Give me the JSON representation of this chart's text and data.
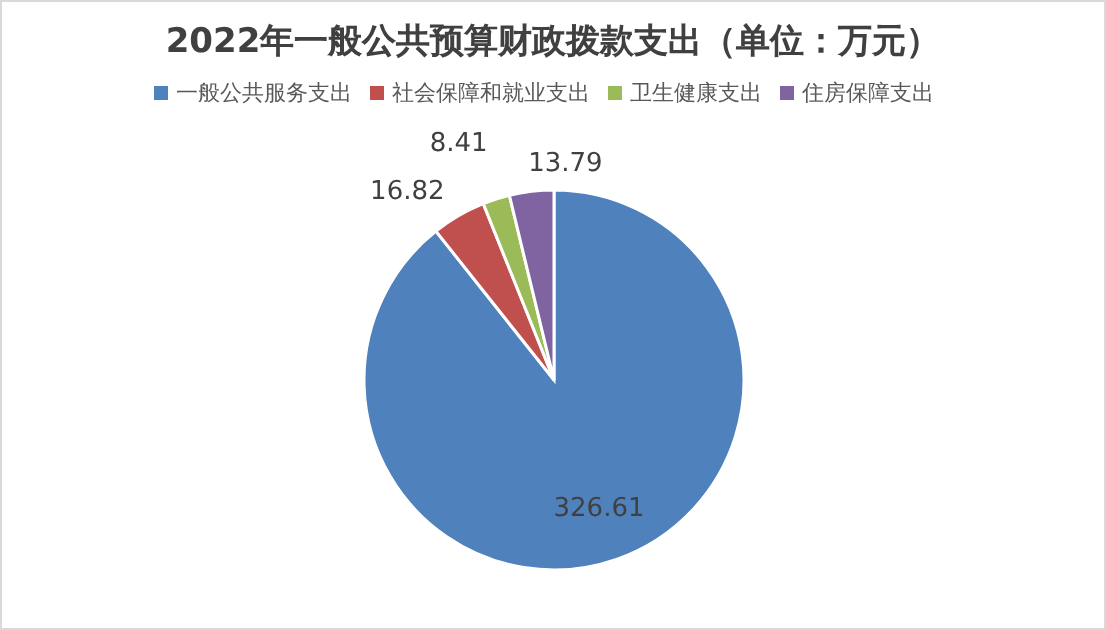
{
  "chart_data": {
    "type": "pie",
    "title": "2022年一般公共预算财政拨款支出（单位：万元）",
    "categories": [
      "一般公共服务支出",
      "社会保障和就业支出",
      "卫生健康支出",
      "住房保障支出"
    ],
    "values": [
      326.61,
      16.82,
      8.41,
      13.79
    ],
    "colors": [
      "#4f81bd",
      "#c0504d",
      "#9bbb59",
      "#8064a2"
    ],
    "data_labels": true,
    "legend": "top"
  }
}
